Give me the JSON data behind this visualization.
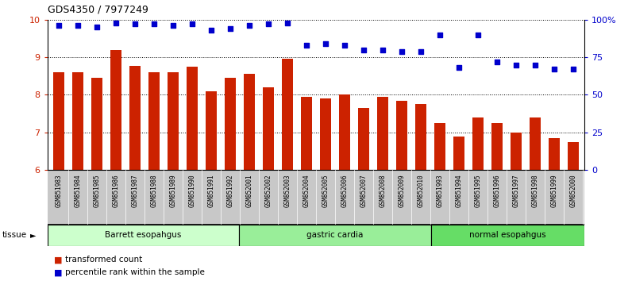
{
  "title": "GDS4350 / 7977249",
  "samples": [
    "GSM851983",
    "GSM851984",
    "GSM851985",
    "GSM851986",
    "GSM851987",
    "GSM851988",
    "GSM851989",
    "GSM851990",
    "GSM851991",
    "GSM851992",
    "GSM852001",
    "GSM852002",
    "GSM852003",
    "GSM852004",
    "GSM852005",
    "GSM852006",
    "GSM852007",
    "GSM852008",
    "GSM852009",
    "GSM852010",
    "GSM851993",
    "GSM851994",
    "GSM851995",
    "GSM851996",
    "GSM851997",
    "GSM851998",
    "GSM851999",
    "GSM852000"
  ],
  "bar_values": [
    8.6,
    8.6,
    8.45,
    9.2,
    8.78,
    8.6,
    8.6,
    8.75,
    8.1,
    8.45,
    8.55,
    8.2,
    8.95,
    7.95,
    7.9,
    8.0,
    7.65,
    7.95,
    7.85,
    7.75,
    7.25,
    6.9,
    7.4,
    7.25,
    7.0,
    7.4,
    6.85,
    6.75
  ],
  "dot_values": [
    96,
    96,
    95,
    98,
    97,
    97,
    96,
    97,
    93,
    94,
    96,
    97,
    98,
    83,
    84,
    83,
    80,
    80,
    79,
    79,
    90,
    68,
    90,
    72,
    70,
    70,
    67,
    67
  ],
  "groups": [
    {
      "label": "Barrett esopahgus",
      "start": 0,
      "end": 10,
      "color": "#ccffcc"
    },
    {
      "label": "gastric cardia",
      "start": 10,
      "end": 20,
      "color": "#99ee99"
    },
    {
      "label": "normal esopahgus",
      "start": 20,
      "end": 28,
      "color": "#66dd66"
    }
  ],
  "bar_color": "#cc2200",
  "dot_color": "#0000cc",
  "ylim_left": [
    6,
    10
  ],
  "ylim_right": [
    0,
    100
  ],
  "yticks_left": [
    6,
    7,
    8,
    9,
    10
  ],
  "yticks_right": [
    0,
    25,
    50,
    75,
    100
  ],
  "ylabel_right_labels": [
    "0",
    "25",
    "50",
    "75",
    "100%"
  ],
  "legend_items": [
    "transformed count",
    "percentile rank within the sample"
  ],
  "tissue_label": "tissue",
  "tick_bg_color": "#c8c8c8",
  "fig_width": 7.96,
  "fig_height": 3.54
}
